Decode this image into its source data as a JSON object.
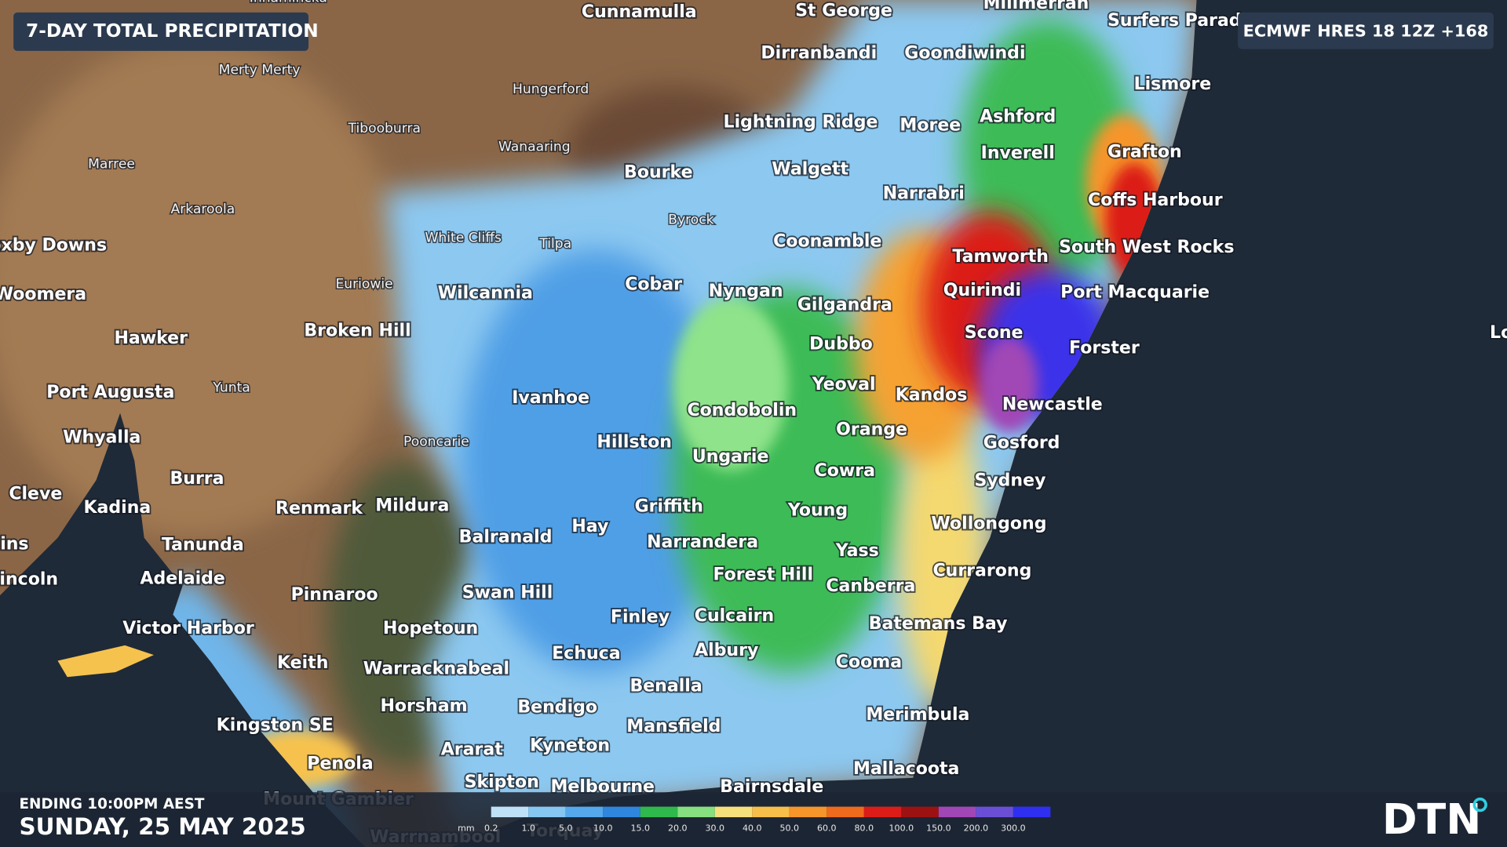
{
  "header": {
    "title": "7-DAY TOTAL PRECIPITATION",
    "model": "ECMWF HRES 18 12Z +168"
  },
  "places": [
    "Innamincka",
    "Cunnamulla",
    "St George",
    "Millmerran",
    "Surfers Parad",
    "Dirranbandi",
    "Goondiwindi",
    "Merty Merty",
    "Hungerford",
    "Lismore",
    "Tibooburra",
    "Lightning Ridge",
    "Moree",
    "Ashford",
    "Wanaaring",
    "Inverell",
    "Grafton",
    "Marree",
    "Bourke",
    "Walgett",
    "Narrabri",
    "Coffs Harbour",
    "Arkaroola",
    "Byrock",
    "White Cliffs",
    "Tilpa",
    "Coonamble",
    "oxby Downs",
    "Tamworth",
    "South West Rocks",
    "Euriowie",
    "Cobar",
    "Nyngan",
    "Wilcannia",
    "Woomera",
    "Quirindi",
    "Port Macquarie",
    "Gilgandra",
    "Hawker",
    "Broken Hill",
    "Dubbo",
    "Scone",
    "Forster",
    "Yeoval",
    "Port Augusta",
    "Yunta",
    "Ivanhoe",
    "Kandos",
    "Newcastle",
    "Condobolin",
    "Orange",
    "Whyalla",
    "Pooncarie",
    "Hillston",
    "Gosford",
    "Ungarie",
    "Cowra",
    "Burra",
    "Sydney",
    "Cleve",
    "Kadina",
    "Renmark",
    "Mildura",
    "Griffith",
    "Young",
    "Hay",
    "Balranald",
    "Wollongong",
    "ins",
    "Tanunda",
    "Narrandera",
    "Yass",
    "Currarong",
    "incoln",
    "Adelaide",
    "Forest Hill",
    "Canberra",
    "Pinnaroo",
    "Swan Hill",
    "Finley",
    "Culcairn",
    "Batemans Bay",
    "Victor Harbor",
    "Hopetoun",
    "Echuca",
    "Albury",
    "Keith",
    "Cooma",
    "Warracknabeal",
    "Benalla",
    "Horsham",
    "Bendigo",
    "Merimbula",
    "Kingston SE",
    "Mansfield",
    "Ararat",
    "Kyneton",
    "Penola",
    "Mallacoota",
    "Skipton",
    "Melbourne",
    "Bairnsdale",
    "Mount Gambier",
    "Torquay",
    "Warrnambool",
    "Lo"
  ],
  "footer": {
    "ending": "ENDING 10:00PM AEST",
    "date": "SUNDAY, 25 MAY 2025"
  },
  "legend": {
    "unit": "mm",
    "bins": [
      {
        "label": "0.2",
        "color": "#bfe1f7"
      },
      {
        "label": "1.0",
        "color": "#86c6f2"
      },
      {
        "label": "5.0",
        "color": "#55a8ec"
      },
      {
        "label": "10.0",
        "color": "#2f86dc"
      },
      {
        "label": "15.0",
        "color": "#2fb84c"
      },
      {
        "label": "20.0",
        "color": "#86e07f"
      },
      {
        "label": "30.0",
        "color": "#f6e07c"
      },
      {
        "label": "40.0",
        "color": "#f6bf4a"
      },
      {
        "label": "50.0",
        "color": "#f5952a"
      },
      {
        "label": "60.0",
        "color": "#ef6a1c"
      },
      {
        "label": "80.0",
        "color": "#dc1c18"
      },
      {
        "label": "100.0",
        "color": "#9c1212"
      },
      {
        "label": "150.0",
        "color": "#a146b6"
      },
      {
        "label": "200.0",
        "color": "#6a4fd6"
      },
      {
        "label": "300.0",
        "color": "#2f2ff2"
      }
    ]
  },
  "logo": "DTN"
}
